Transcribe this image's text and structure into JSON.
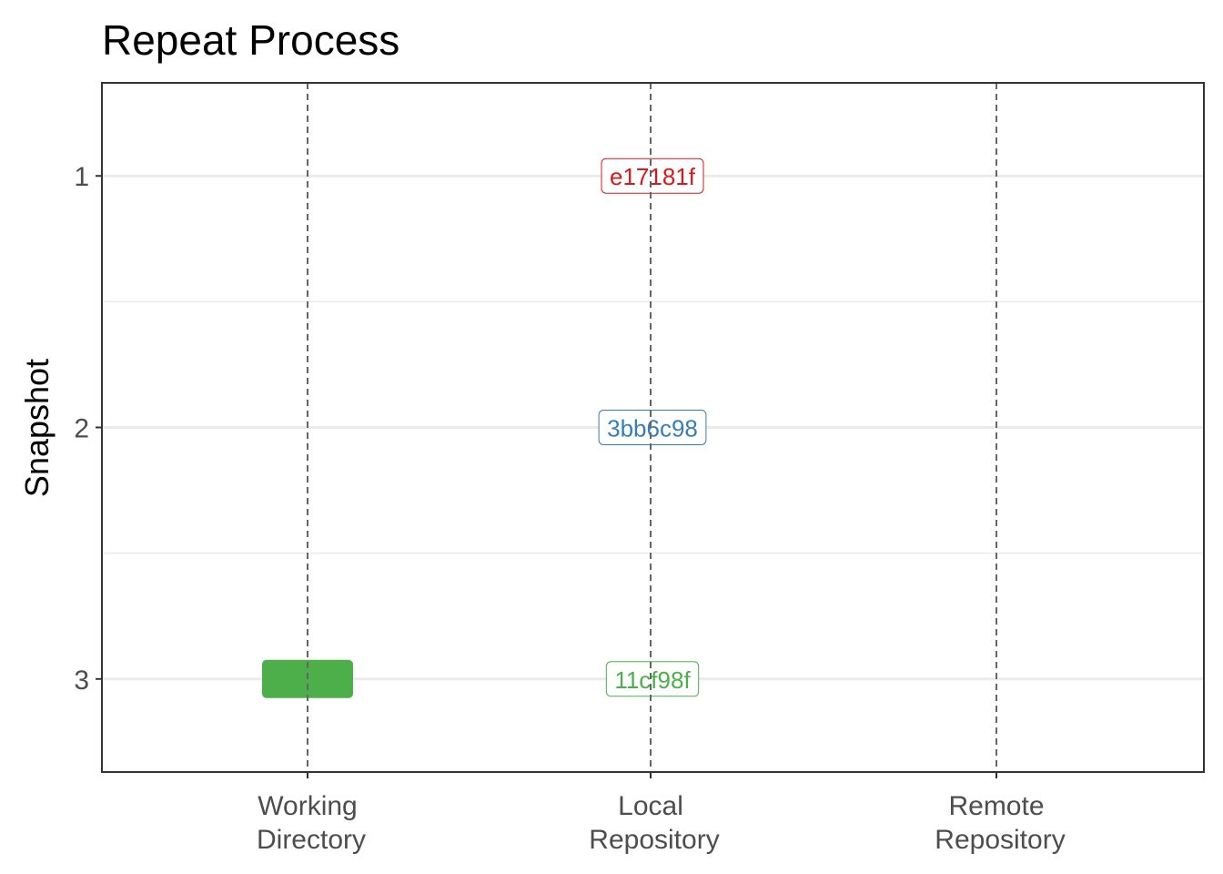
{
  "chart_data": {
    "type": "scatter",
    "title": "Repeat Process",
    "xlabel": "",
    "ylabel": "Snapshot",
    "x_categories": [
      [
        "Working",
        "Directory"
      ],
      [
        "Local",
        "Repository"
      ],
      [
        "Remote",
        "Repository"
      ]
    ],
    "y_ticks": [
      1,
      2,
      3
    ],
    "ylim": [
      3.37,
      0.63
    ],
    "y_reversed": true,
    "grid": true,
    "colors": {
      "red": "#d7191c",
      "blue": "#377eb8",
      "green": "#4daf4a",
      "vline": "#666666",
      "grid": "#ebebeb"
    },
    "points": [
      {
        "location": "Local Repository",
        "snapshot": 1,
        "label": "e17181f",
        "color": "#d7191c",
        "style": "label"
      },
      {
        "location": "Local Repository",
        "snapshot": 2,
        "label": "3bb6c98",
        "color": "#377eb8",
        "style": "label"
      },
      {
        "location": "Local Repository",
        "snapshot": 3,
        "label": "11cf98f",
        "color": "#4daf4a",
        "style": "label"
      },
      {
        "location": "Working Directory",
        "snapshot": 3,
        "label": "",
        "color": "#4daf4a",
        "style": "filled"
      }
    ]
  }
}
